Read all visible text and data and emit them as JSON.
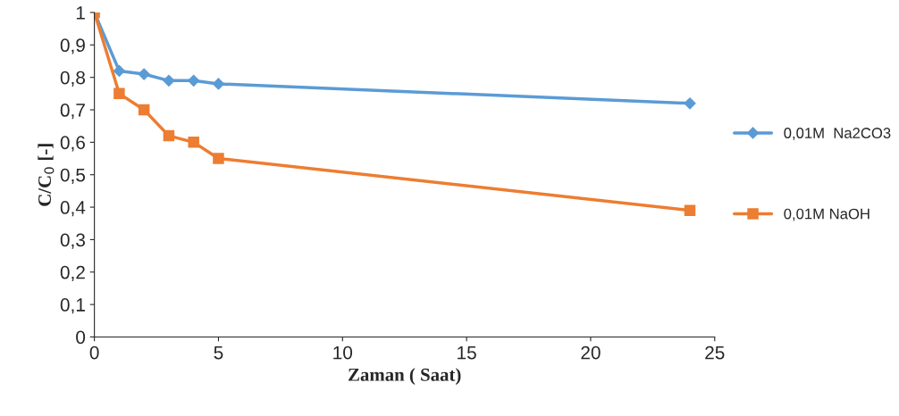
{
  "chart_data": {
    "type": "line",
    "xlabel": "Zaman ( Saat)",
    "ylabel": "C/C$_{0}$ [-]",
    "x": [
      0,
      1,
      2,
      3,
      4,
      5,
      24
    ],
    "series": [
      {
        "name": "0,01M  Na2CO3",
        "color": "#5b9bd5",
        "marker": "diamond",
        "values": [
          1,
          0.82,
          0.81,
          0.79,
          0.79,
          0.78,
          0.72
        ]
      },
      {
        "name": "0,01M NaOH",
        "color": "#ed7d31",
        "marker": "square",
        "values": [
          1,
          0.75,
          0.7,
          0.62,
          0.6,
          0.55,
          0.39
        ]
      }
    ],
    "xlim": [
      0,
      25
    ],
    "xticks": [
      0,
      5,
      10,
      15,
      20,
      25
    ],
    "ylim": [
      0,
      1
    ],
    "yticks": [
      {
        "value": 0,
        "label": "0"
      },
      {
        "value": 0.1,
        "label": "0,1"
      },
      {
        "value": 0.2,
        "label": "0,2"
      },
      {
        "value": 0.3,
        "label": "0,3"
      },
      {
        "value": 0.4,
        "label": "0,4"
      },
      {
        "value": 0.5,
        "label": "0,5"
      },
      {
        "value": 0.6,
        "label": "0,6"
      },
      {
        "value": 0.7,
        "label": "0,7"
      },
      {
        "value": 0.8,
        "label": "0,8"
      },
      {
        "value": 0.9,
        "label": "0,9"
      },
      {
        "value": 1,
        "label": "1"
      }
    ],
    "grid": false,
    "legend": "right",
    "line_style": "solid"
  }
}
